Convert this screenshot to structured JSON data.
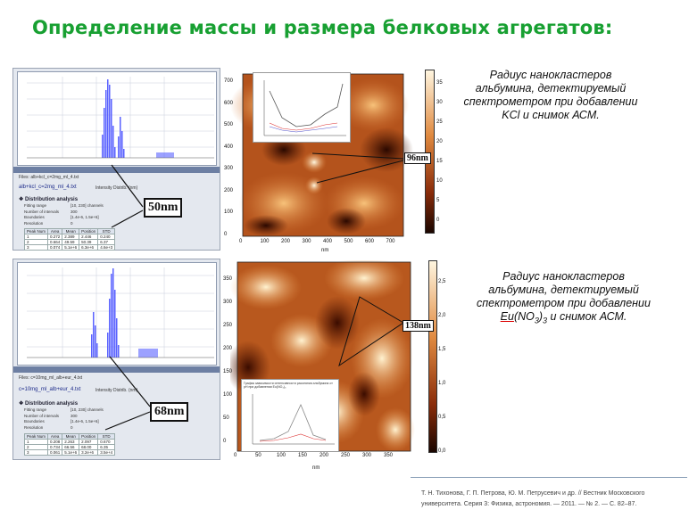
{
  "title": "Определение массы и размера белковых агрегатов:",
  "top": {
    "file": "alb+kcl_c=2mg_ml_4.txt",
    "files_label": "Files: alb+kcl_c=2mg_ml_4.txt",
    "intensity": "Intensity Distrib. (nm)",
    "dist_title": "Distribution analysis",
    "fitting_range": "[10, 230] channels",
    "intervals": "300",
    "boundaries": "[1.4e-6, 1.5e+6]",
    "resolution": "0",
    "rows": [
      [
        "1",
        "0.272",
        "2.389",
        "2.446",
        "0.240"
      ],
      [
        "2",
        "0.664",
        "49.59",
        "50.39",
        "6.37"
      ],
      [
        "3",
        "0.074",
        "5.1e+6",
        "6.3e+6",
        "4.6e+3"
      ]
    ],
    "callout": "50nm",
    "afm_callout": "96nm",
    "caption_lines": [
      "Радиус нанокластеров",
      "альбумина, детектируемый",
      "спектрометром при добавлении",
      "KCl и снимок АСМ."
    ]
  },
  "bottom": {
    "file": "c=10mg_ml_alb+eur_4.txt",
    "files_label": "Files: c=10mg_ml_alb+eur_4.txt",
    "intensity": "Intensity Distrib. (nm)",
    "dist_title": "Distribution analysis",
    "fitting_range": "[10, 230] channels",
    "intervals": "300",
    "boundaries": "[1.4e-6, 1.5e+6]",
    "resolution": "0",
    "rows": [
      [
        "1",
        "0.208",
        "2.263",
        "2.097",
        "0.670"
      ],
      [
        "2",
        "0.734",
        "66.56",
        "68.00",
        "6.35"
      ],
      [
        "3",
        "0.061",
        "5.1e+6",
        "3.2e+6",
        "3.5e+4"
      ]
    ],
    "callout": "68nm",
    "afm_callout": "138nm",
    "caption_line1": "Радиус нанокластеров",
    "caption_line2": "альбумина, детектируемый",
    "caption_line3": "спектрометром при добавлении",
    "caption_eu": "Eu",
    "caption_formula": "(NO",
    "caption_sub": "3",
    "caption_close": ")",
    "caption_sub2": "3",
    "caption_end": " и снимок АСМ.",
    "inset_title": "График зависимости интенсивности рассеяния альбумина от pH при добавлении Eu(NO₃)₃"
  },
  "table_headers": [
    "Peak Num",
    "Area",
    "Mean",
    "Position",
    "STD"
  ],
  "param_labels": [
    "Fitting range",
    "Number of intervals",
    "Boundaries",
    "Resolution"
  ],
  "afm_axis": {
    "top_x": [
      "0",
      "100",
      "200",
      "300",
      "400",
      "500",
      "600",
      "700"
    ],
    "top_y": [
      "700",
      "600",
      "500",
      "400",
      "300",
      "200",
      "100",
      "0"
    ],
    "top_cbar": [
      "35",
      "30",
      "25",
      "20",
      "15",
      "10",
      "5",
      "0"
    ],
    "bottom_x": [
      "0",
      "50",
      "100",
      "150",
      "200",
      "250",
      "300",
      "350"
    ],
    "bottom_y": [
      "350",
      "300",
      "250",
      "200",
      "150",
      "100",
      "50",
      "0"
    ],
    "bottom_cbar": [
      "2,5",
      "2,0",
      "1,5",
      "1,0",
      "0,5",
      "0,0"
    ],
    "unit": "nm"
  },
  "reference": "Т. Н. Тихонова, Г. П. Петрова, Ю. М. Петрусевич и др. // Вестник Московского университета. Серия 3: Физика, астрономия. — 2011. — № 2. — С. 82–87.",
  "colors": {
    "title": "#18a032",
    "bars": "#5a62ff",
    "afm_dark": "#1a0600",
    "afm_light": "#fff2d0"
  }
}
